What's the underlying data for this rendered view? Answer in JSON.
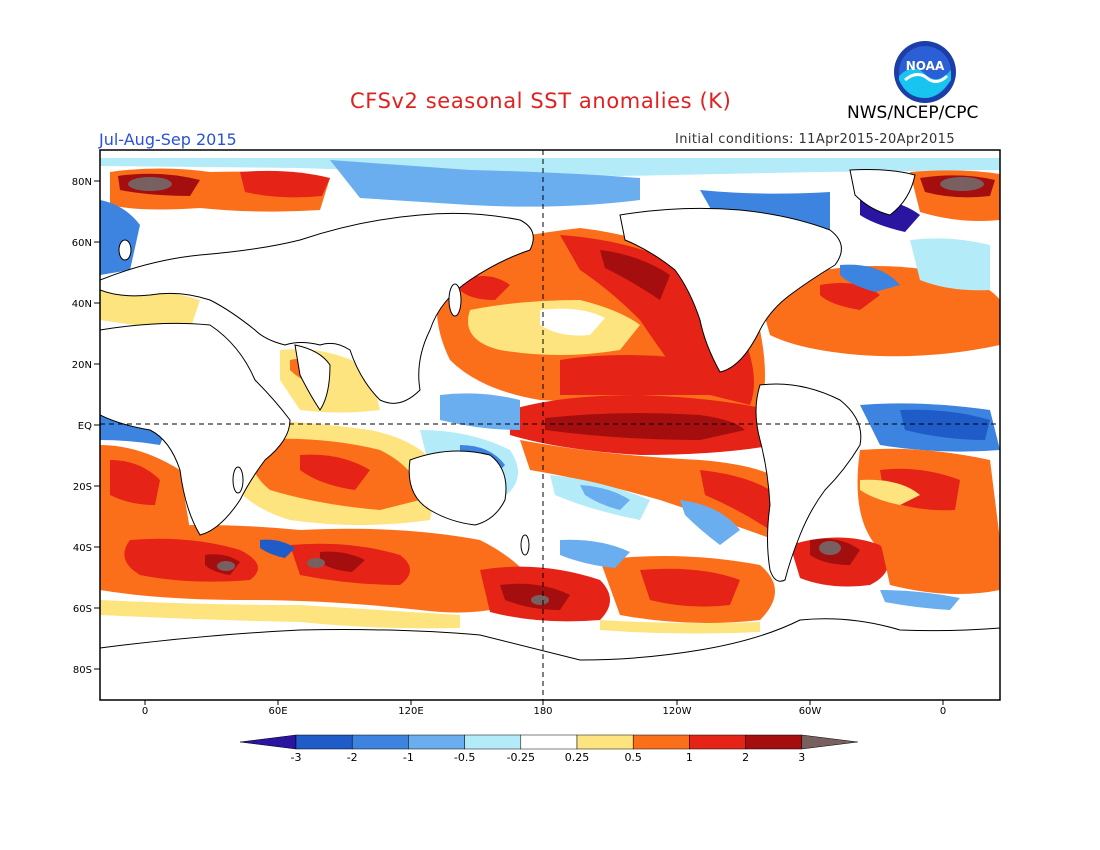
{
  "title": "CFSv2 seasonal SST anomalies (K)",
  "period": "Jul-Aug-Sep 2015",
  "agency": "NWS/NCEP/CPC",
  "initial_conditions": "Initial conditions: 11Apr2015-20Apr2015",
  "logo_text": "NOAA",
  "lat_labels": [
    "80N",
    "60N",
    "40N",
    "20N",
    "EQ",
    "20S",
    "40S",
    "60S",
    "80S"
  ],
  "lon_labels": [
    "0",
    "60E",
    "120E",
    "180",
    "120W",
    "60W",
    "0"
  ],
  "colorbar": {
    "tick_labels": [
      "-3",
      "-2",
      "-1",
      "-0.5",
      "-0.25",
      "0.25",
      "0.5",
      "1",
      "2",
      "3"
    ],
    "colors": [
      "#2a15a0",
      "#1f5cc8",
      "#3c84e0",
      "#6aaef0",
      "#b4ebf8",
      "#ffffff",
      "#fde47e",
      "#fb6f1a",
      "#e52316",
      "#a50e0e",
      "#786060"
    ]
  },
  "colors": {
    "title": "#e0211f",
    "period": "#2a52d8",
    "land": "#ffffff",
    "coastline": "#000000"
  }
}
